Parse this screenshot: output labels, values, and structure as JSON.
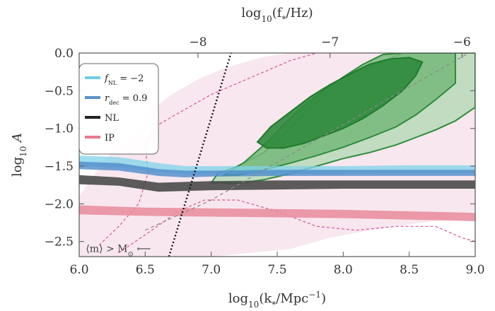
{
  "chart_data": {
    "type": "area",
    "x_axis": {
      "label_main": "log",
      "label_sub": "10",
      "label_rest": "(k",
      "label_star": "*",
      "label_unit": "/Mpc",
      "label_exp": "−1",
      "label_close": ")",
      "range": [
        6.0,
        9.0
      ],
      "ticks": [
        {
          "value": 6.0,
          "label": "6.0"
        },
        {
          "value": 6.5,
          "label": "6.5"
        },
        {
          "value": 7.0,
          "label": "7.0"
        },
        {
          "value": 7.5,
          "label": "7.5"
        },
        {
          "value": 8.0,
          "label": "8.0"
        },
        {
          "value": 8.5,
          "label": "8.5"
        },
        {
          "value": 9.0,
          "label": "9.0"
        }
      ]
    },
    "top_axis": {
      "label_main": "log",
      "label_sub": "10",
      "label_rest": "(f",
      "label_star": "*",
      "label_unit": "/Hz)",
      "ticks": [
        {
          "value": 6.9,
          "label": "−8"
        },
        {
          "value": 7.9,
          "label": "−7"
        },
        {
          "value": 8.9,
          "label": "−6"
        }
      ]
    },
    "y_axis": {
      "label_main": "log",
      "label_sub": "10",
      "label_rest": " A",
      "range": [
        -2.7,
        0.0
      ],
      "ticks": [
        {
          "value": 0.0,
          "label": "0.0"
        },
        {
          "value": -0.5,
          "label": "−0.5"
        },
        {
          "value": -1.0,
          "label": "−1.0"
        },
        {
          "value": -1.5,
          "label": "−1.5"
        },
        {
          "value": -2.0,
          "label": "−2.0"
        },
        {
          "value": -2.5,
          "label": "−2.5"
        }
      ]
    },
    "legend": {
      "placement": "top-left",
      "entries": [
        {
          "symbol": "f",
          "sub": "NL",
          "rest": " = −2",
          "color": "#6fd0e6"
        },
        {
          "symbol": "r",
          "sub": "dec",
          "rest": " = 0.9",
          "color": "#5b8fc9"
        },
        {
          "symbol": "NL",
          "sub": "",
          "rest": "",
          "color": "#222222"
        },
        {
          "symbol": "IP",
          "sub": "",
          "rest": "",
          "color": "#e57a8c"
        }
      ]
    },
    "bands": [
      {
        "name_ref": "f_NL = −2",
        "color": "#7fd3ea",
        "opacity": 0.75,
        "x": [
          6.0,
          6.3,
          6.6,
          6.8,
          7.0,
          7.5,
          8.0,
          8.5,
          9.0
        ],
        "upper": [
          -1.36,
          -1.38,
          -1.46,
          -1.5,
          -1.5,
          -1.5,
          -1.5,
          -1.49,
          -1.49
        ],
        "lower": [
          -1.5,
          -1.52,
          -1.58,
          -1.6,
          -1.6,
          -1.6,
          -1.6,
          -1.59,
          -1.59
        ]
      },
      {
        "name_ref": "r_dec = 0.9",
        "color": "#4f8ccb",
        "opacity": 0.8,
        "x": [
          6.0,
          6.3,
          6.6,
          6.8,
          7.0,
          7.5,
          8.0,
          8.5,
          9.0
        ],
        "upper": [
          -1.44,
          -1.46,
          -1.54,
          -1.56,
          -1.56,
          -1.55,
          -1.55,
          -1.55,
          -1.55
        ],
        "lower": [
          -1.54,
          -1.56,
          -1.63,
          -1.65,
          -1.64,
          -1.63,
          -1.63,
          -1.63,
          -1.63
        ]
      },
      {
        "name_ref": "NL",
        "color": "#4a4a4a",
        "opacity": 0.9,
        "x": [
          6.0,
          6.3,
          6.6,
          6.8,
          7.0,
          7.5,
          8.0,
          8.5,
          9.0
        ],
        "upper": [
          -1.62,
          -1.65,
          -1.72,
          -1.71,
          -1.7,
          -1.69,
          -1.69,
          -1.69,
          -1.69
        ],
        "lower": [
          -1.74,
          -1.76,
          -1.84,
          -1.83,
          -1.82,
          -1.81,
          -1.8,
          -1.8,
          -1.8
        ]
      },
      {
        "name_ref": "IP",
        "color": "#e98a9b",
        "opacity": 0.85,
        "x": [
          6.0,
          6.5,
          7.0,
          7.5,
          8.0,
          8.5,
          9.0
        ],
        "upper": [
          -2.02,
          -2.05,
          -2.06,
          -2.07,
          -2.08,
          -2.1,
          -2.12
        ],
        "lower": [
          -2.14,
          -2.16,
          -2.17,
          -2.18,
          -2.19,
          -2.21,
          -2.23
        ]
      }
    ],
    "pink_region": {
      "color": "#f6dfea",
      "outer": [
        [
          6.0,
          -2.7
        ],
        [
          6.0,
          -1.9
        ],
        [
          6.2,
          -1.4
        ],
        [
          6.4,
          -1.1
        ],
        [
          6.55,
          -0.75
        ],
        [
          6.7,
          -0.55
        ],
        [
          6.9,
          -0.35
        ],
        [
          7.1,
          -0.2
        ],
        [
          7.4,
          -0.05
        ],
        [
          7.6,
          0.0
        ],
        [
          9.0,
          0.0
        ],
        [
          9.0,
          -2.1
        ],
        [
          8.8,
          -2.2
        ],
        [
          8.6,
          -2.25
        ],
        [
          8.4,
          -2.3
        ],
        [
          8.2,
          -2.35
        ],
        [
          7.9,
          -2.45
        ],
        [
          7.6,
          -2.6
        ],
        [
          7.3,
          -2.65
        ],
        [
          7.0,
          -2.7
        ]
      ],
      "dashed_outer": [
        [
          6.15,
          -2.55
        ],
        [
          6.3,
          -2.3
        ],
        [
          6.45,
          -2.0
        ],
        [
          6.52,
          -1.6
        ],
        [
          6.5,
          -1.2
        ],
        [
          6.6,
          -0.95
        ],
        [
          6.8,
          -0.75
        ],
        [
          7.0,
          -0.55
        ],
        [
          7.2,
          -0.4
        ],
        [
          7.4,
          -0.25
        ],
        [
          7.6,
          -0.1
        ],
        [
          7.8,
          0.0
        ]
      ],
      "dashed_inner": [
        [
          6.3,
          -2.65
        ],
        [
          6.55,
          -2.35
        ],
        [
          6.75,
          -2.1
        ],
        [
          6.95,
          -1.95
        ],
        [
          7.2,
          -1.95
        ],
        [
          7.5,
          -2.1
        ],
        [
          7.8,
          -2.3
        ],
        [
          8.1,
          -2.35
        ],
        [
          8.4,
          -2.3
        ],
        [
          8.7,
          -2.3
        ],
        [
          8.9,
          -2.45
        ],
        [
          9.0,
          -2.5
        ]
      ]
    },
    "contours": {
      "outer": [
        [
          7.0,
          -1.72
        ],
        [
          7.05,
          -1.6
        ],
        [
          7.2,
          -1.5
        ],
        [
          7.4,
          -1.32
        ],
        [
          7.55,
          -1.08
        ],
        [
          7.7,
          -0.8
        ],
        [
          7.85,
          -0.58
        ],
        [
          8.0,
          -0.4
        ],
        [
          8.15,
          -0.25
        ],
        [
          8.3,
          -0.12
        ],
        [
          8.45,
          0.0
        ],
        [
          9.0,
          0.0
        ],
        [
          9.0,
          -0.72
        ],
        [
          8.85,
          -0.9
        ],
        [
          8.7,
          -1.02
        ],
        [
          8.55,
          -1.12
        ],
        [
          8.4,
          -1.22
        ],
        [
          8.2,
          -1.32
        ],
        [
          8.0,
          -1.4
        ],
        [
          7.8,
          -1.5
        ],
        [
          7.6,
          -1.6
        ],
        [
          7.4,
          -1.68
        ],
        [
          7.2,
          -1.73
        ]
      ],
      "middle": [
        [
          7.1,
          -1.62
        ],
        [
          7.25,
          -1.45
        ],
        [
          7.4,
          -1.22
        ],
        [
          7.55,
          -0.95
        ],
        [
          7.7,
          -0.7
        ],
        [
          7.85,
          -0.5
        ],
        [
          8.0,
          -0.32
        ],
        [
          8.15,
          -0.15
        ],
        [
          8.3,
          -0.02
        ],
        [
          8.45,
          0.0
        ],
        [
          8.85,
          0.0
        ],
        [
          8.85,
          -0.4
        ],
        [
          8.7,
          -0.62
        ],
        [
          8.55,
          -0.82
        ],
        [
          8.4,
          -0.98
        ],
        [
          8.2,
          -1.12
        ],
        [
          8.0,
          -1.25
        ],
        [
          7.8,
          -1.36
        ],
        [
          7.6,
          -1.46
        ],
        [
          7.4,
          -1.55
        ],
        [
          7.2,
          -1.62
        ]
      ],
      "inner": [
        [
          7.35,
          -1.18
        ],
        [
          7.45,
          -0.98
        ],
        [
          7.6,
          -0.78
        ],
        [
          7.75,
          -0.58
        ],
        [
          7.9,
          -0.42
        ],
        [
          8.05,
          -0.28
        ],
        [
          8.2,
          -0.15
        ],
        [
          8.35,
          -0.08
        ],
        [
          8.5,
          -0.06
        ],
        [
          8.6,
          -0.12
        ],
        [
          8.55,
          -0.3
        ],
        [
          8.45,
          -0.5
        ],
        [
          8.3,
          -0.7
        ],
        [
          8.15,
          -0.87
        ],
        [
          8.0,
          -1.0
        ],
        [
          7.85,
          -1.1
        ],
        [
          7.7,
          -1.2
        ],
        [
          7.55,
          -1.26
        ],
        [
          7.42,
          -1.26
        ]
      ]
    },
    "grey_dashed": [
      [
        6.5,
        -2.35
      ],
      [
        7.0,
        -1.95
      ],
      [
        7.5,
        -1.45
      ],
      [
        8.0,
        -0.95
      ],
      [
        8.5,
        -0.45
      ],
      [
        8.95,
        0.0
      ]
    ],
    "black_dotted": [
      [
        6.68,
        -2.7
      ],
      [
        7.15,
        0.0
      ]
    ],
    "annotation": {
      "text_open": "⟨m⟩ > M",
      "text_sub": "⊙",
      "text_arrow": " ⟵",
      "x": 6.05,
      "y": -2.6
    }
  }
}
